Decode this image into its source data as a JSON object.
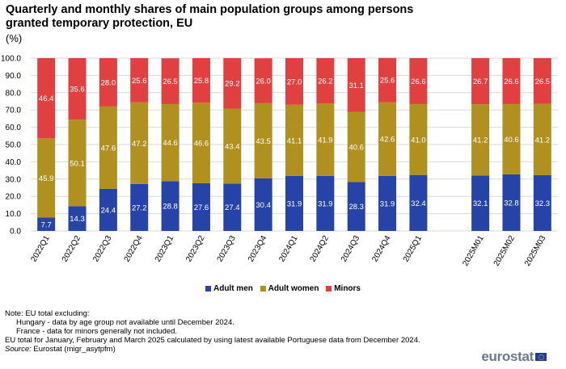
{
  "title": "Quarterly and monthly shares of main population groups among persons granted temporary protection, EU",
  "unit": "(%)",
  "chart_data": {
    "type": "bar",
    "stacked": true,
    "categories": [
      "2022Q1",
      "2022Q2",
      "2022Q3",
      "2022Q4",
      "2023Q1",
      "2023Q2",
      "2023Q3",
      "2023Q4",
      "2024Q1",
      "2024Q2",
      "2024Q3",
      "2024Q4",
      "2025Q1",
      "",
      "2025M01",
      "2025M02",
      "2025M03"
    ],
    "series": [
      {
        "name": "Adult men",
        "color": "#2644a7",
        "values": [
          7.7,
          14.3,
          24.4,
          27.2,
          28.8,
          27.6,
          27.4,
          30.4,
          31.9,
          31.9,
          28.3,
          31.9,
          32.4,
          null,
          32.1,
          32.8,
          32.3
        ]
      },
      {
        "name": "Adult women",
        "color": "#b09120",
        "values": [
          45.9,
          50.1,
          47.6,
          47.2,
          44.6,
          46.6,
          43.4,
          43.5,
          41.1,
          41.9,
          40.6,
          42.6,
          41.0,
          null,
          41.2,
          40.6,
          41.2
        ]
      },
      {
        "name": "Minors",
        "color": "#e04040",
        "values": [
          46.4,
          35.6,
          28.0,
          25.6,
          26.5,
          25.8,
          29.2,
          26.0,
          27.0,
          26.2,
          31.1,
          25.6,
          26.6,
          null,
          26.7,
          26.6,
          26.5
        ]
      }
    ],
    "yticks": [
      "0.0",
      "10.0",
      "20.0",
      "30.0",
      "40.0",
      "50.0",
      "60.0",
      "70.0",
      "80.0",
      "90.0",
      "100.0"
    ],
    "ylim": [
      0,
      100
    ],
    "grid": true,
    "legend_position": "bottom-center"
  },
  "notes": {
    "line1": "Note: EU total excluding:",
    "line2": "Hungary - data by age group not available until December 2024.",
    "line3": "France - data for minors generally not included.",
    "line4": "EU total for January, February and March 2025 calculated by using latest available Portuguese data from December 2024.",
    "source_label": "Source:",
    "source_text": " Eurostat (migr_asytpfm)"
  },
  "logo_text": "eurostat"
}
